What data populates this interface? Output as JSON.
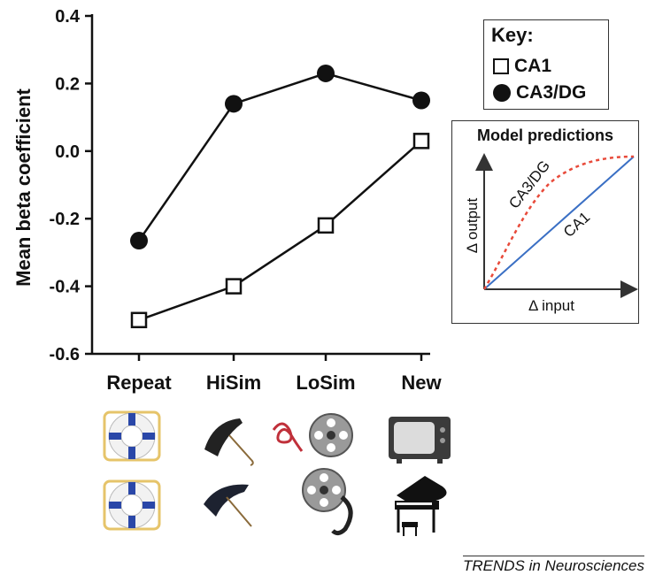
{
  "chart_data": {
    "type": "line",
    "categories": [
      "Repeat",
      "HiSim",
      "LoSim",
      "New"
    ],
    "series": [
      {
        "name": "CA1",
        "marker": "open-square",
        "values": [
          -0.5,
          -0.4,
          -0.22,
          0.03
        ]
      },
      {
        "name": "CA3/DG",
        "marker": "filled-circle",
        "values": [
          -0.265,
          0.14,
          0.23,
          0.15
        ]
      }
    ],
    "ylabel": "Mean beta coefficient",
    "ylim": [
      -0.6,
      0.4
    ],
    "yticks": [
      "0.4",
      "0.2",
      "0.0",
      "-0.2",
      "-0.4",
      "-0.6"
    ],
    "ytick_values": [
      0.4,
      0.2,
      0.0,
      -0.2,
      -0.4,
      -0.6
    ],
    "legend": {
      "title": "Key:",
      "placement": "top-right"
    },
    "grid": false
  },
  "model": {
    "title": "Model predictions",
    "xlabel": "Δ input",
    "ylabel": "Δ output",
    "ca3dg_label": "CA3/DG",
    "ca1_label": "CA1",
    "colors": {
      "ca3dg": "#e84a3a",
      "ca1": "#3a6fc4"
    }
  },
  "stimuli": {
    "rows": [
      [
        "life-ring",
        "umbrella",
        "ribbon-and-film-reel",
        "television"
      ],
      [
        "life-ring",
        "umbrella",
        "film-reel",
        "grand-piano"
      ]
    ]
  },
  "credit": "TRENDS in Neurosciences"
}
